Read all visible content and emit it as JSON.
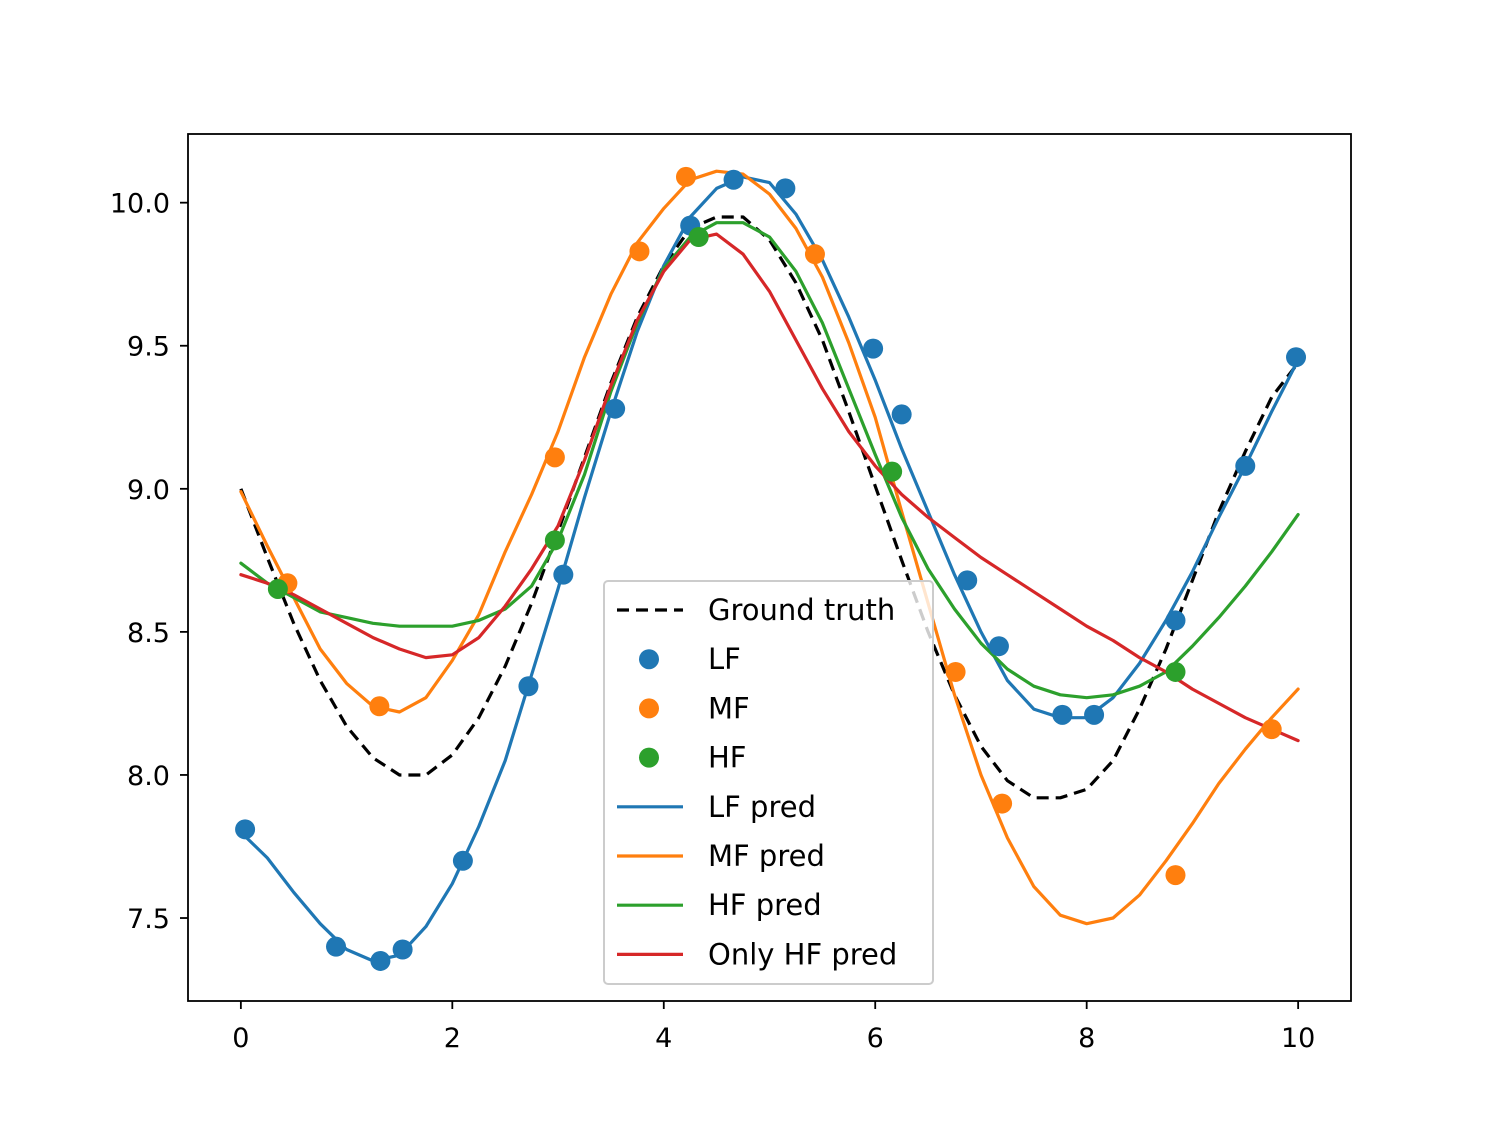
{
  "chart_data": {
    "type": "line",
    "title": "",
    "xlabel": "",
    "ylabel": "",
    "xlim": [
      -0.5,
      10.5
    ],
    "ylim": [
      7.21,
      10.24
    ],
    "xticks": [
      0,
      2,
      4,
      6,
      8,
      10
    ],
    "xtick_labels": [
      "0",
      "2",
      "4",
      "6",
      "8",
      "10"
    ],
    "yticks": [
      7.5,
      8.0,
      8.5,
      9.0,
      9.5,
      10.0
    ],
    "ytick_labels": [
      "7.5",
      "8.0",
      "8.5",
      "9.0",
      "9.5",
      "10.0"
    ],
    "grid": false,
    "legend_position": "lower-center",
    "colors": {
      "ground_truth": "#000000",
      "lf": "#1f77b4",
      "mf": "#ff7f0e",
      "hf": "#2ca02c",
      "only_hf": "#d62728"
    },
    "series": [
      {
        "name": "Ground truth",
        "kind": "line",
        "style": "dashed",
        "color": "#000000",
        "x": [
          0,
          0.25,
          0.5,
          0.75,
          1.0,
          1.25,
          1.5,
          1.75,
          2.0,
          2.25,
          2.5,
          2.75,
          3.0,
          3.25,
          3.5,
          3.75,
          4.0,
          4.25,
          4.5,
          4.75,
          5.0,
          5.25,
          5.5,
          5.75,
          6.0,
          6.25,
          6.5,
          6.75,
          7.0,
          7.25,
          7.5,
          7.75,
          8.0,
          8.25,
          8.5,
          8.75,
          9.0,
          9.25,
          9.5,
          9.75,
          10.0
        ],
        "y": [
          9.0,
          8.76,
          8.53,
          8.33,
          8.17,
          8.06,
          8.0,
          8.0,
          8.07,
          8.2,
          8.38,
          8.6,
          8.85,
          9.11,
          9.37,
          9.6,
          9.78,
          9.91,
          9.95,
          9.95,
          9.87,
          9.72,
          9.52,
          9.27,
          9.01,
          8.75,
          8.5,
          8.28,
          8.1,
          7.98,
          7.92,
          7.92,
          7.95,
          8.05,
          8.23,
          8.44,
          8.68,
          8.92,
          9.13,
          9.32,
          9.44
        ]
      },
      {
        "name": "LF",
        "kind": "scatter",
        "color": "#1f77b4",
        "x": [
          0.04,
          0.9,
          1.32,
          1.53,
          2.1,
          2.72,
          3.05,
          3.54,
          4.25,
          4.66,
          5.15,
          5.98,
          6.25,
          6.87,
          7.17,
          7.77,
          8.07,
          8.84,
          9.5,
          9.98
        ],
        "y": [
          7.81,
          7.4,
          7.35,
          7.39,
          7.7,
          8.31,
          8.7,
          9.28,
          9.92,
          10.08,
          10.05,
          9.49,
          9.26,
          8.68,
          8.45,
          8.21,
          8.21,
          8.54,
          9.08,
          9.46
        ]
      },
      {
        "name": "MF",
        "kind": "scatter",
        "color": "#ff7f0e",
        "x": [
          0.44,
          1.31,
          2.97,
          3.77,
          4.21,
          5.43,
          6.76,
          7.2,
          8.84,
          9.75
        ],
        "y": [
          8.67,
          8.24,
          9.11,
          9.83,
          10.09,
          9.82,
          8.36,
          7.9,
          7.65,
          8.16
        ]
      },
      {
        "name": "HF",
        "kind": "scatter",
        "color": "#2ca02c",
        "x": [
          0.35,
          2.97,
          4.33,
          6.16,
          8.84
        ],
        "y": [
          8.65,
          8.82,
          9.88,
          9.06,
          8.36
        ]
      },
      {
        "name": "LF pred",
        "kind": "line",
        "style": "solid",
        "color": "#1f77b4",
        "x": [
          0,
          0.25,
          0.5,
          0.75,
          1.0,
          1.25,
          1.5,
          1.75,
          2.0,
          2.25,
          2.5,
          2.75,
          3.0,
          3.25,
          3.5,
          3.75,
          4.0,
          4.25,
          4.5,
          4.75,
          5.0,
          5.25,
          5.5,
          5.75,
          6.0,
          6.25,
          6.5,
          6.75,
          7.0,
          7.25,
          7.5,
          7.75,
          8.0,
          8.25,
          8.5,
          8.75,
          9.0,
          9.25,
          9.5,
          9.75,
          10.0
        ],
        "y": [
          7.8,
          7.71,
          7.59,
          7.48,
          7.39,
          7.35,
          7.37,
          7.47,
          7.62,
          7.82,
          8.05,
          8.35,
          8.65,
          8.97,
          9.27,
          9.55,
          9.78,
          9.95,
          10.05,
          10.09,
          10.07,
          9.96,
          9.8,
          9.6,
          9.38,
          9.14,
          8.92,
          8.7,
          8.5,
          8.33,
          8.23,
          8.2,
          8.2,
          8.27,
          8.39,
          8.54,
          8.71,
          8.9,
          9.08,
          9.27,
          9.45
        ]
      },
      {
        "name": "MF pred",
        "kind": "line",
        "style": "solid",
        "color": "#ff7f0e",
        "x": [
          0,
          0.25,
          0.5,
          0.75,
          1.0,
          1.25,
          1.5,
          1.75,
          2.0,
          2.25,
          2.5,
          2.75,
          3.0,
          3.25,
          3.5,
          3.75,
          4.0,
          4.25,
          4.5,
          4.75,
          5.0,
          5.25,
          5.5,
          5.75,
          6.0,
          6.25,
          6.5,
          6.75,
          7.0,
          7.25,
          7.5,
          7.75,
          8.0,
          8.25,
          8.5,
          8.75,
          9.0,
          9.25,
          9.5,
          9.75,
          10.0
        ],
        "y": [
          8.99,
          8.8,
          8.62,
          8.44,
          8.32,
          8.24,
          8.22,
          8.27,
          8.4,
          8.56,
          8.78,
          8.98,
          9.2,
          9.46,
          9.68,
          9.86,
          9.98,
          10.08,
          10.11,
          10.1,
          10.03,
          9.91,
          9.74,
          9.51,
          9.25,
          8.92,
          8.6,
          8.28,
          8.0,
          7.78,
          7.61,
          7.51,
          7.48,
          7.5,
          7.58,
          7.7,
          7.83,
          7.97,
          8.09,
          8.2,
          8.3
        ]
      },
      {
        "name": "HF pred",
        "kind": "line",
        "style": "solid",
        "color": "#2ca02c",
        "x": [
          0,
          0.25,
          0.5,
          0.75,
          1.0,
          1.25,
          1.5,
          1.75,
          2.0,
          2.25,
          2.5,
          2.75,
          3.0,
          3.25,
          3.5,
          3.75,
          4.0,
          4.25,
          4.5,
          4.75,
          5.0,
          5.25,
          5.5,
          5.75,
          6.0,
          6.25,
          6.5,
          6.75,
          7.0,
          7.25,
          7.5,
          7.75,
          8.0,
          8.25,
          8.5,
          8.75,
          9.0,
          9.25,
          9.5,
          9.75,
          10.0
        ],
        "y": [
          8.74,
          8.67,
          8.62,
          8.57,
          8.55,
          8.53,
          8.52,
          8.52,
          8.52,
          8.54,
          8.58,
          8.66,
          8.82,
          9.05,
          9.34,
          9.58,
          9.77,
          9.88,
          9.93,
          9.93,
          9.88,
          9.76,
          9.58,
          9.35,
          9.12,
          8.9,
          8.72,
          8.58,
          8.46,
          8.37,
          8.31,
          8.28,
          8.27,
          8.28,
          8.31,
          8.36,
          8.45,
          8.55,
          8.66,
          8.78,
          8.91
        ]
      },
      {
        "name": "Only HF pred",
        "kind": "line",
        "style": "solid",
        "color": "#d62728",
        "x": [
          0,
          0.25,
          0.5,
          0.75,
          1.0,
          1.25,
          1.5,
          1.75,
          2.0,
          2.25,
          2.5,
          2.75,
          3.0,
          3.25,
          3.5,
          3.75,
          4.0,
          4.25,
          4.5,
          4.75,
          5.0,
          5.25,
          5.5,
          5.75,
          6.0,
          6.25,
          6.5,
          6.75,
          7.0,
          7.25,
          7.5,
          7.75,
          8.0,
          8.25,
          8.5,
          8.75,
          9.0,
          9.25,
          9.5,
          9.75,
          10.0
        ],
        "y": [
          8.7,
          8.67,
          8.63,
          8.58,
          8.53,
          8.48,
          8.44,
          8.41,
          8.42,
          8.48,
          8.59,
          8.72,
          8.87,
          9.1,
          9.36,
          9.59,
          9.76,
          9.87,
          9.89,
          9.82,
          9.69,
          9.52,
          9.35,
          9.2,
          9.08,
          8.98,
          8.9,
          8.83,
          8.76,
          8.7,
          8.64,
          8.58,
          8.52,
          8.47,
          8.41,
          8.36,
          8.3,
          8.25,
          8.2,
          8.16,
          8.12
        ]
      }
    ],
    "legend": [
      "Ground truth",
      "LF",
      "MF",
      "HF",
      "LF pred",
      "MF pred",
      "HF pred",
      "Only HF pred"
    ]
  }
}
